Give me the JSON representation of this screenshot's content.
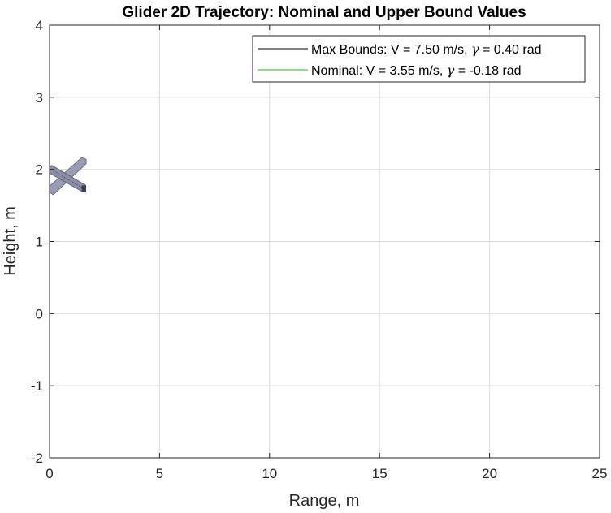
{
  "chart_data": {
    "type": "line",
    "title": "Glider 2D Trajectory: Nominal and Upper Bound Values",
    "xlabel": "Range, m",
    "ylabel": "Height, m",
    "xlim": [
      0,
      25
    ],
    "ylim": [
      -2,
      4
    ],
    "xticks": [
      0,
      5,
      10,
      15,
      20,
      25
    ],
    "yticks": [
      -2,
      -1,
      0,
      1,
      2,
      3,
      4
    ],
    "grid": true,
    "legend_position": "top-right",
    "series": [
      {
        "name_parts": [
          "Max Bounds: V = 7.50 m/s, ",
          "γ",
          " = 0.40 rad"
        ],
        "color": "#000000",
        "x": [
          0
        ],
        "y": [
          1.9
        ]
      },
      {
        "name_parts": [
          "Nominal: V = 3.55 m/s, ",
          "γ",
          " = -0.18 rad"
        ],
        "color": "#00cc00",
        "x": [
          0
        ],
        "y": [
          1.9
        ]
      }
    ],
    "glider_icon": {
      "x": [
        0,
        1.7
      ],
      "y": [
        1.6,
        2.2
      ],
      "color": "#9a9cb4"
    }
  }
}
